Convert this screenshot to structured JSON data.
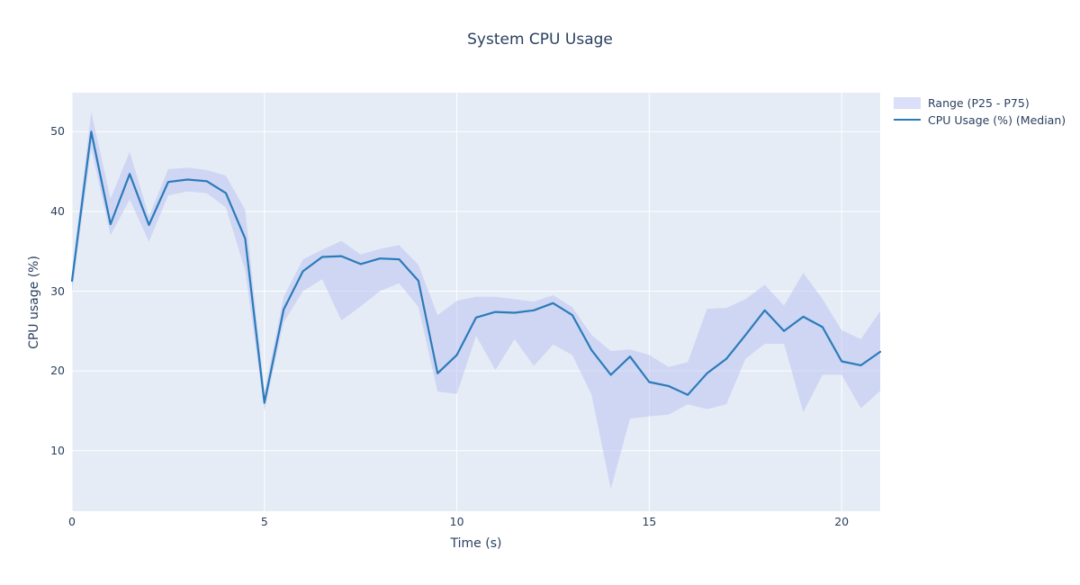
{
  "title": "System CPU Usage",
  "legend": {
    "position": "top-right-outside",
    "items": [
      {
        "label": "Range (P25 - P75)",
        "swatch": "band"
      },
      {
        "label": "CPU Usage (%) (Median)",
        "swatch": "line"
      }
    ]
  },
  "chart_data": {
    "type": "line",
    "title": "System CPU Usage",
    "xlabel": "Time (s)",
    "ylabel": "CPU usage (%)",
    "x_ticks": [
      0,
      5,
      10,
      15,
      20
    ],
    "y_ticks": [
      10,
      20,
      30,
      40,
      50
    ],
    "xlim": [
      0,
      21
    ],
    "ylim": [
      2.4,
      54.9
    ],
    "grid": true,
    "legend_position": "top-right-outside",
    "x": [
      0,
      0.5,
      1,
      1.5,
      2,
      2.5,
      3,
      3.5,
      4,
      4.5,
      5,
      5.5,
      6,
      6.5,
      7,
      7.5,
      8,
      8.5,
      9,
      9.5,
      10,
      10.5,
      11,
      11.5,
      12,
      12.5,
      13,
      13.5,
      14,
      14.5,
      15,
      15.5,
      16,
      16.5,
      17,
      17.5,
      18,
      18.5,
      19,
      19.5,
      20,
      20.5,
      21
    ],
    "series": [
      {
        "name": "Range (P25 - P75)",
        "type": "band",
        "fill_color": "rgba(190,196,240,0.55)",
        "p75": [
          32.4,
          52.5,
          41.6,
          47.5,
          39.4,
          45.3,
          45.5,
          45.2,
          44.5,
          40.2,
          17.3,
          29.3,
          34,
          35.2,
          36.3,
          34.6,
          35.3,
          35.8,
          33.3,
          27,
          28.8,
          29.3,
          29.3,
          29,
          28.7,
          29.5,
          28,
          24.5,
          22.5,
          22.7,
          22,
          20.5,
          21.1,
          27.8,
          27.9,
          29,
          30.8,
          28.2,
          32.3,
          29,
          25.1,
          24,
          27.5
        ],
        "p25": [
          29.8,
          47.9,
          37,
          41.5,
          36.2,
          42,
          42.5,
          42.3,
          40.5,
          32.6,
          15,
          26.1,
          30,
          31.5,
          26.3,
          28.1,
          30,
          31,
          28,
          17.4,
          17.1,
          24.4,
          20.1,
          24,
          20.6,
          23.3,
          22,
          17,
          5.2,
          14,
          14.3,
          14.5,
          15.8,
          15.2,
          15.8,
          21.5,
          23.4,
          23.4,
          14.8,
          19.5,
          19.5,
          15.3,
          17.5
        ]
      },
      {
        "name": "CPU Usage (%) (Median)",
        "type": "line",
        "color": "#2b7bba",
        "line_width": 2.2,
        "values": [
          31.3,
          50,
          38.4,
          44.7,
          38.3,
          43.7,
          44,
          43.8,
          42.3,
          36.6,
          16,
          27.7,
          32.5,
          34.3,
          34.4,
          33.4,
          34.1,
          34,
          31.3,
          19.7,
          22,
          26.7,
          27.4,
          27.3,
          27.6,
          28.5,
          27,
          22.6,
          19.5,
          21.8,
          18.6,
          18.1,
          17,
          19.7,
          21.5,
          24.5,
          27.6,
          25,
          26.8,
          25.5,
          21.2,
          20.7,
          22.4
        ]
      }
    ],
    "colors": {
      "plot_background": "#e5ecf6",
      "grid": "#ffffff",
      "text": "#2a3f5f",
      "page_background": "#ffffff"
    }
  }
}
